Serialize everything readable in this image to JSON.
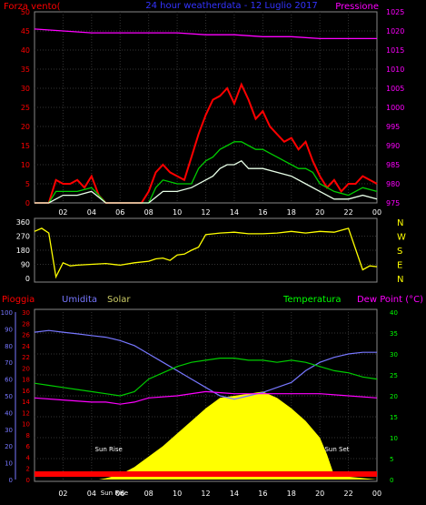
{
  "chart_data": [
    {
      "type": "line",
      "title": "24 hour weatherdata - 12 Luglio 2017",
      "y_left_label": "Forza vento(",
      "y_right_label": "Pressione",
      "x_ticks": [
        "02",
        "04",
        "06",
        "08",
        "10",
        "12",
        "14",
        "16",
        "18",
        "20",
        "22",
        "00"
      ],
      "y_left_ticks": [
        0,
        5,
        10,
        15,
        20,
        25,
        30,
        35,
        40,
        45,
        50
      ],
      "y_right_ticks": [
        975,
        980,
        985,
        990,
        995,
        1000,
        1005,
        1010,
        1015,
        1020,
        1025
      ],
      "ylim_left": [
        0,
        50
      ],
      "ylim_right": [
        975,
        1025
      ],
      "series": [
        {
          "name": "gust",
          "color": "#ff0000",
          "x": [
            0,
            1,
            1.5,
            2,
            2.5,
            3,
            3.5,
            4,
            4.5,
            5,
            5.5,
            6,
            6.5,
            7,
            7.5,
            8,
            8.5,
            9,
            9.5,
            10,
            10.5,
            11,
            11.5,
            12,
            12.5,
            13,
            13.5,
            14,
            14.5,
            15,
            15.5,
            16,
            16.5,
            17,
            17.5,
            18,
            18.5,
            19,
            19.5,
            20,
            20.5,
            21,
            21.5,
            22,
            22.5,
            23,
            23.5,
            24
          ],
          "y": [
            0,
            0,
            6,
            5,
            5,
            6,
            4,
            7,
            2,
            0,
            0,
            0,
            0,
            0,
            0,
            3,
            8,
            10,
            8,
            7,
            6,
            12,
            18,
            23,
            27,
            28,
            30,
            26,
            31,
            27,
            22,
            24,
            20,
            18,
            16,
            17,
            14,
            16,
            11,
            7,
            4,
            6,
            3,
            5,
            5,
            7,
            6,
            5
          ]
        },
        {
          "name": "wind",
          "color": "#00cc00",
          "x": [
            0,
            1,
            1.5,
            2,
            3,
            4,
            4.5,
            5,
            7,
            8,
            8.5,
            9,
            10,
            11,
            11.5,
            12,
            12.5,
            13,
            13.5,
            14,
            14.5,
            15,
            15.5,
            16,
            16.5,
            17,
            17.5,
            18,
            18.5,
            19,
            19.5,
            20,
            21,
            22,
            23,
            24
          ],
          "y": [
            0,
            0,
            3,
            3,
            3,
            4,
            2,
            0,
            0,
            0,
            4,
            6,
            5,
            5,
            9,
            11,
            12,
            14,
            15,
            16,
            16,
            15,
            14,
            14,
            13,
            12,
            11,
            10,
            9,
            9,
            8,
            5,
            3,
            2,
            4,
            3
          ]
        },
        {
          "name": "wind_avg",
          "color": "#e8ffe8",
          "x": [
            0,
            1,
            2,
            3,
            4,
            5,
            7,
            8,
            9,
            10,
            11,
            12,
            12.5,
            13,
            13.5,
            14,
            14.5,
            15,
            16,
            17,
            18,
            19,
            20,
            21,
            22,
            23,
            24
          ],
          "y": [
            0,
            0,
            2,
            2,
            3,
            0,
            0,
            0,
            3,
            3,
            4,
            6,
            7,
            9,
            10,
            10,
            11,
            9,
            9,
            8,
            7,
            5,
            3,
            1,
            1,
            2,
            1
          ]
        },
        {
          "name": "pressure",
          "color": "#ff00ff",
          "axis": "right",
          "x": [
            0,
            2,
            4,
            6,
            8,
            10,
            12,
            14,
            16,
            18,
            20,
            22,
            24
          ],
          "y": [
            1020.5,
            1020,
            1019.5,
            1019.5,
            1019.5,
            1019.5,
            1019,
            1019,
            1018.5,
            1018.5,
            1018,
            1018,
            1018
          ]
        }
      ]
    },
    {
      "type": "line",
      "y_ticks": [
        0,
        90,
        180,
        270,
        360
      ],
      "y_right_ticks": [
        "N",
        "W",
        "S",
        "E",
        "N"
      ],
      "ylim": [
        0,
        360
      ],
      "series": [
        {
          "name": "wind_direction",
          "color": "#ffff00",
          "x": [
            0,
            0.5,
            1,
            1.5,
            2,
            2.5,
            3,
            4,
            5,
            6,
            7,
            8,
            8.5,
            9,
            9.5,
            10,
            10.5,
            11,
            11.5,
            12,
            13,
            14,
            15,
            16,
            17,
            18,
            19,
            20,
            21,
            22,
            23,
            23.5,
            24
          ],
          "y": [
            300,
            320,
            290,
            10,
            100,
            80,
            85,
            90,
            95,
            85,
            100,
            110,
            125,
            130,
            115,
            150,
            155,
            180,
            200,
            280,
            290,
            295,
            285,
            285,
            290,
            300,
            290,
            300,
            295,
            320,
            55,
            80,
            75
          ]
        }
      ]
    },
    {
      "type": "area",
      "y_labels": {
        "rain": "Pioggia",
        "humidity": "Umidita",
        "solar": "Solar",
        "temperature": "Temperatura",
        "dewpoint": "Dew Point (°C)"
      },
      "rain_ticks": [
        0,
        10,
        20,
        30,
        40,
        50,
        60,
        70,
        80,
        90,
        100
      ],
      "humidity_ticks": [
        0,
        2,
        4,
        6,
        8,
        10,
        12,
        14,
        16,
        18,
        20,
        22,
        24,
        26,
        28,
        30
      ],
      "temp_ticks": [
        0,
        5,
        10,
        15,
        20,
        25,
        30,
        35,
        40
      ],
      "annotations": [
        "Sun Rise",
        "Sun Set",
        "Sun Rise"
      ],
      "ylim_temp": [
        0,
        40
      ],
      "series": [
        {
          "name": "solar",
          "color": "#ffff00",
          "x": [
            0,
            4.5,
            5,
            6,
            7,
            8,
            9,
            10,
            11,
            12,
            13,
            14,
            15,
            16,
            17,
            18,
            19,
            20,
            20.5,
            21,
            24
          ],
          "y": [
            0,
            0,
            0.3,
            1.2,
            3,
            5.5,
            8,
            11,
            14,
            17,
            19.5,
            20,
            20.5,
            21,
            19.5,
            17,
            14,
            10,
            6,
            1,
            0
          ]
        },
        {
          "name": "humidity",
          "color": "#7777ff",
          "x": [
            0,
            1,
            2,
            3,
            4,
            5,
            6,
            7,
            8,
            9,
            10,
            11,
            12,
            13,
            14,
            15,
            16,
            17,
            18,
            19,
            20,
            21,
            22,
            23,
            24
          ],
          "y": [
            88,
            89,
            88,
            87,
            86,
            85,
            83,
            80,
            75,
            70,
            65,
            60,
            55,
            50,
            48,
            50,
            52,
            55,
            58,
            65,
            70,
            73,
            75,
            76,
            76
          ]
        },
        {
          "name": "temperature",
          "color": "#00cc00",
          "x": [
            0,
            1,
            2,
            3,
            4,
            5,
            6,
            7,
            8,
            9,
            10,
            11,
            12,
            13,
            14,
            15,
            16,
            17,
            18,
            19,
            20,
            21,
            22,
            23,
            24
          ],
          "y": [
            23,
            22.5,
            22,
            21.5,
            21,
            20.5,
            20,
            21,
            24,
            25.5,
            27,
            28,
            28.5,
            29,
            29,
            28.5,
            28.5,
            28,
            28.5,
            28,
            27,
            26,
            25.5,
            24.5,
            24
          ]
        },
        {
          "name": "dewpoint",
          "color": "#ff00ff",
          "x": [
            0,
            2,
            4,
            5,
            6,
            7,
            8,
            10,
            12,
            14,
            16,
            18,
            20,
            22,
            24
          ],
          "y": [
            19.5,
            19,
            18.5,
            18.5,
            18,
            18.5,
            19.5,
            20,
            21,
            20.5,
            20.5,
            20.5,
            20.5,
            20,
            19.5
          ]
        },
        {
          "name": "rain",
          "color": "#ff0000",
          "x": [
            0,
            24
          ],
          "y": [
            2,
            2
          ]
        }
      ]
    }
  ]
}
